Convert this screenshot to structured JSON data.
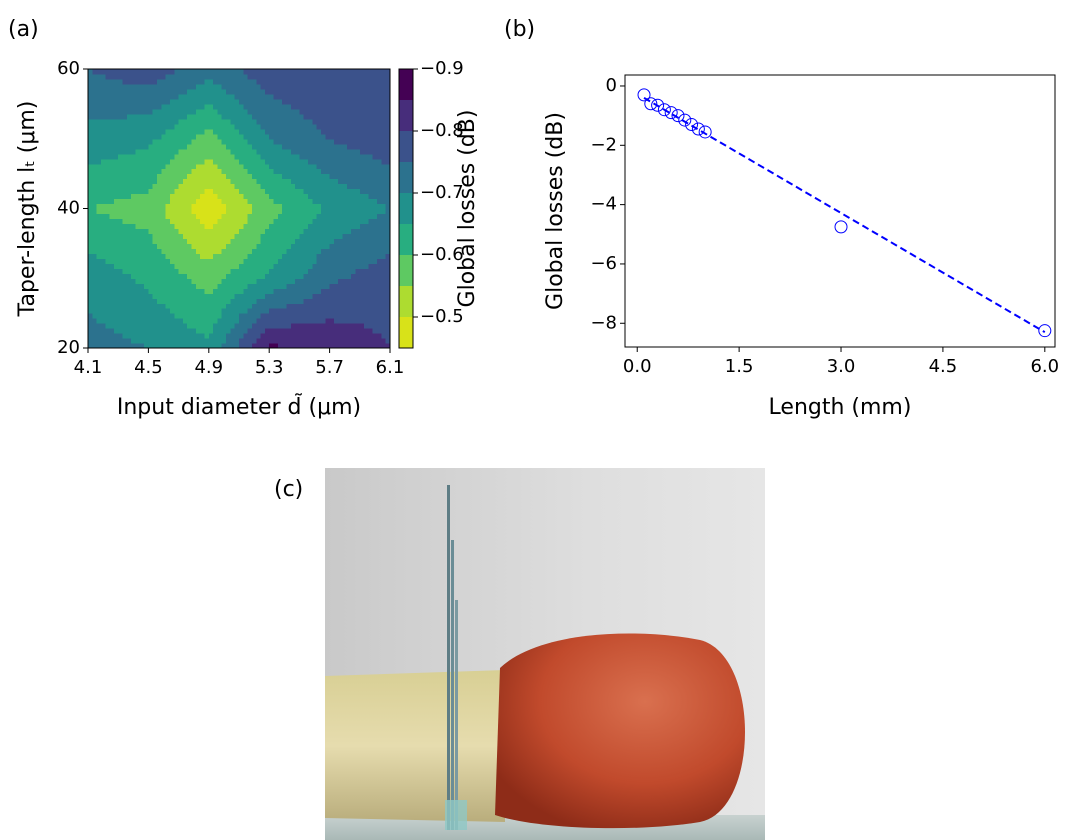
{
  "panel_labels": [
    "(a)",
    "(b)",
    "(c)"
  ],
  "chart_data": [
    {
      "type": "contour",
      "xlabel": "Input diameter d̃ (μm)",
      "ylabel": "Taper-length lₜ (μm)",
      "colorbar_label": "Global losses (dB)",
      "x": [
        4.1,
        4.5,
        4.9,
        5.3,
        5.7,
        6.1
      ],
      "y": [
        20,
        30,
        40,
        50,
        60
      ],
      "z": [
        [
          -0.72,
          -0.7,
          -0.66,
          -0.86,
          -0.84,
          -0.8
        ],
        [
          -0.68,
          -0.64,
          -0.58,
          -0.66,
          -0.74,
          -0.78
        ],
        [
          -0.6,
          -0.58,
          -0.46,
          -0.58,
          -0.66,
          -0.7
        ],
        [
          -0.68,
          -0.66,
          -0.58,
          -0.7,
          -0.75,
          -0.78
        ],
        [
          -0.75,
          -0.78,
          -0.72,
          -0.78,
          -0.8,
          -0.8
        ]
      ],
      "xlim": [
        4.1,
        6.1
      ],
      "ylim": [
        20,
        60
      ],
      "xticks": [
        4.1,
        4.5,
        4.9,
        5.3,
        5.7,
        6.1
      ],
      "yticks": [
        20,
        40,
        60
      ],
      "levels": [
        -0.9,
        -0.85,
        -0.8,
        -0.75,
        -0.7,
        -0.65,
        -0.6,
        -0.55,
        -0.5,
        -0.45
      ],
      "colors": [
        "#440154",
        "#472d7b",
        "#3b528b",
        "#2c728e",
        "#21918c",
        "#28ae80",
        "#5ec962",
        "#addc30",
        "#d8e219"
      ],
      "colorbar_ticks": [
        {
          "value": -0.9,
          "label": "−0.9"
        },
        {
          "value": -0.8,
          "label": "−0.8"
        },
        {
          "value": -0.7,
          "label": "−0.7"
        },
        {
          "value": -0.6,
          "label": "−0.6"
        },
        {
          "value": -0.5,
          "label": "−0.5"
        }
      ]
    },
    {
      "type": "scatter",
      "xlabel": "Length (mm)",
      "ylabel": "Global losses (dB)",
      "x": [
        0.1,
        0.2,
        0.3,
        0.4,
        0.5,
        0.6,
        0.7,
        0.8,
        0.9,
        1.0,
        3.0,
        6.0
      ],
      "values": [
        -0.3,
        -0.6,
        -0.65,
        -0.8,
        -0.9,
        -1.0,
        -1.15,
        -1.3,
        -1.45,
        -1.55,
        -4.75,
        -8.25
      ],
      "color": "#0000ff",
      "fit_line": {
        "x": [
          0.1,
          6.0
        ],
        "values": [
          -0.4,
          -8.3
        ]
      },
      "xlim": [
        -0.18,
        6.15
      ],
      "ylim": [
        -8.8,
        0.37
      ],
      "xticks": [
        {
          "value": 0,
          "label": "0.0"
        },
        1.5,
        {
          "value": 3,
          "label": "3.0"
        },
        4.5,
        {
          "value": 6,
          "label": "6.0"
        }
      ],
      "yticks": [
        0,
        {
          "value": -2,
          "label": "−2"
        },
        {
          "value": -4,
          "label": "−4"
        },
        {
          "value": -6,
          "label": "−6"
        },
        {
          "value": -8,
          "label": "−8"
        }
      ]
    }
  ]
}
